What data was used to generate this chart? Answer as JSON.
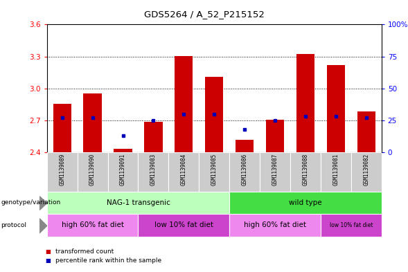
{
  "title": "GDS5264 / A_52_P215152",
  "samples": [
    "GSM1139089",
    "GSM1139090",
    "GSM1139091",
    "GSM1139083",
    "GSM1139084",
    "GSM1139085",
    "GSM1139086",
    "GSM1139087",
    "GSM1139088",
    "GSM1139081",
    "GSM1139082"
  ],
  "bar_values": [
    2.855,
    2.955,
    2.43,
    2.685,
    3.305,
    3.11,
    2.52,
    2.705,
    3.325,
    3.22,
    2.785
  ],
  "percentile_pct": [
    27,
    27,
    13,
    25,
    30,
    30,
    18,
    25,
    28,
    28,
    27
  ],
  "ylim_left": [
    2.4,
    3.6
  ],
  "ylim_right": [
    0,
    100
  ],
  "yticks_left": [
    2.4,
    2.7,
    3.0,
    3.3,
    3.6
  ],
  "yticks_right": [
    0,
    25,
    50,
    75,
    100
  ],
  "ytick_labels_right": [
    "0",
    "25",
    "50",
    "75",
    "100%"
  ],
  "bar_color": "#cc0000",
  "percentile_color": "#0000bb",
  "baseline": 2.4,
  "genotype_groups": [
    {
      "label": "NAG-1 transgenic",
      "start": 0,
      "end": 6,
      "color": "#bbffbb"
    },
    {
      "label": "wild type",
      "start": 6,
      "end": 11,
      "color": "#44dd44"
    }
  ],
  "protocol_groups": [
    {
      "label": "high 60% fat diet",
      "start": 0,
      "end": 3,
      "color": "#ee88ee"
    },
    {
      "label": "low 10% fat diet",
      "start": 3,
      "end": 6,
      "color": "#cc44cc"
    },
    {
      "label": "high 60% fat diet",
      "start": 6,
      "end": 9,
      "color": "#ee88ee"
    },
    {
      "label": "low 10% fat diet",
      "start": 9,
      "end": 11,
      "color": "#cc44cc"
    }
  ],
  "bg_color": "#ffffff",
  "tick_area_color": "#cccccc",
  "legend_items": [
    {
      "label": "transformed count",
      "color": "#cc0000"
    },
    {
      "label": "percentile rank within the sample",
      "color": "#0000bb"
    }
  ],
  "genotype_label": "genotype/variation",
  "protocol_label": "protocol"
}
